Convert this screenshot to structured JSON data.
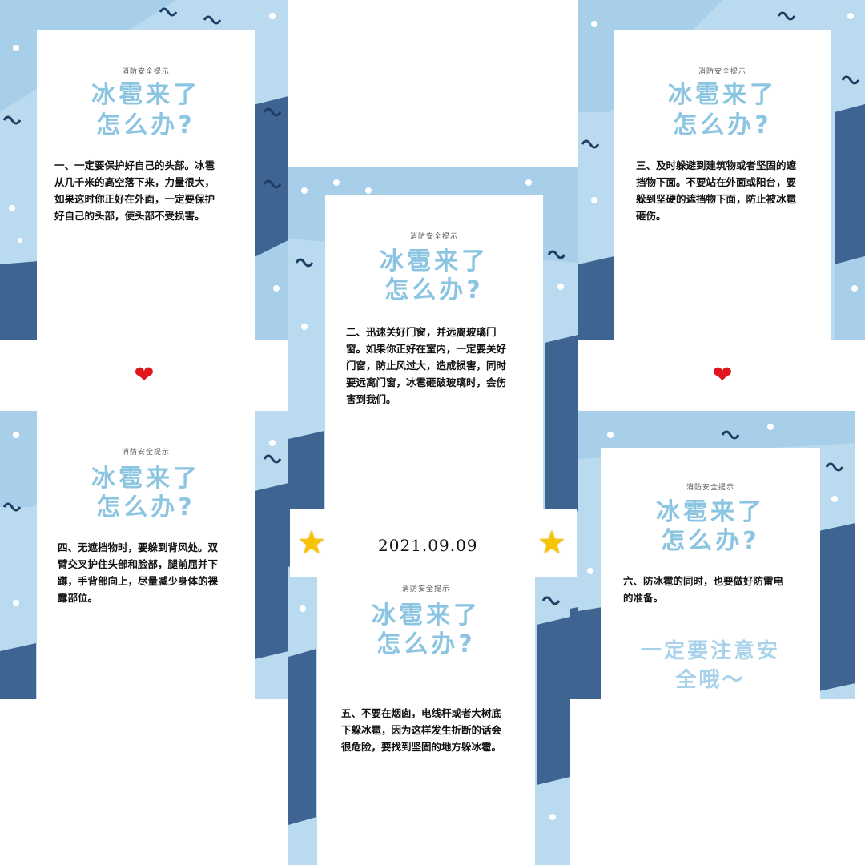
{
  "cards": [
    {
      "tag": "消防安全提示",
      "title_line1": "冰雹来了",
      "title_line2": "怎么办?",
      "body": "一、一定要保护好自己的头部。冰雹从几千米的高空落下来，力量很大，如果这时你正好在外面，一定要保护好自己的头部，使头部不受损害。"
    },
    {
      "tag": "消防安全提示",
      "title_line1": "冰雹来了",
      "title_line2": "怎么办?",
      "body": "二、迅速关好门窗，并远离玻璃门窗。如果你正好在室内，一定要关好门窗，防止风过大，造成损害，同时要远离门窗，冰雹砸破玻璃时，会伤害到我们。"
    },
    {
      "tag": "消防安全提示",
      "title_line1": "冰雹来了",
      "title_line2": "怎么办?",
      "body": "三、及时躲避到建筑物或者坚固的遮挡物下面。不要站在外面或阳台，要躲到坚硬的遮挡物下面，防止被冰雹砸伤。"
    },
    {
      "tag": "消防安全提示",
      "title_line1": "冰雹来了",
      "title_line2": "怎么办?",
      "body": "四、无遮挡物时，要躲到背风处。双臂交叉护住头部和脸部，腿前屈并下蹲，手背部向上，尽量减少身体的裸露部位。"
    },
    {
      "tag": "消防安全提示",
      "title_line1": "冰雹来了",
      "title_line2": "怎么办?",
      "body": "五、不要在烟囱，电线杆或者大树底下躲冰雹，因为这样发生折断的话会很危险，要找到坚固的地方躲冰雹。"
    },
    {
      "tag": "消防安全提示",
      "title_line1": "冰雹来了",
      "title_line2": "怎么办?",
      "body": "六、防冰雹的同时，也要做好防雷电的准备。",
      "slogan_line1": "一定要注意安",
      "slogan_line2": "全哦～"
    }
  ],
  "date": "2021.09.09",
  "decorations": {
    "heart_icon": "heart-icon",
    "star_icon": "star-icon",
    "heart_color": "#e0161f",
    "star_color": "#f6c400",
    "accent": "#8cc5e2",
    "navy": "#3e6591"
  }
}
